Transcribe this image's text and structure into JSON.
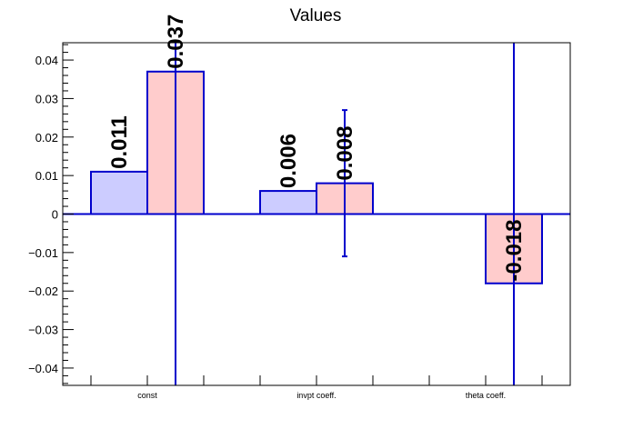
{
  "chart_data": {
    "type": "bar",
    "title": "Values",
    "xlabel": "",
    "ylabel": "",
    "categories": [
      "const",
      "invpt coeff.",
      "theta coeff."
    ],
    "ylim": [
      -0.0445,
      0.0445
    ],
    "yticks": [
      -0.04,
      -0.03,
      -0.02,
      -0.01,
      0,
      0.01,
      0.02,
      0.03,
      0.04
    ],
    "ytick_labels": [
      "−0.04",
      "−0.03",
      "−0.02",
      "−0.01",
      "0",
      "0.01",
      "0.02",
      "0.03",
      "0.04"
    ],
    "grid": false,
    "series": [
      {
        "color": "#ccccff",
        "edge_color": "#0000cc",
        "values": [
          0.011,
          0.006,
          null
        ],
        "labels": [
          "0.011",
          "0.006",
          ""
        ],
        "errors": [
          null,
          null,
          null
        ]
      },
      {
        "color": "#ffcccc",
        "edge_color": "#0000cc",
        "values": [
          0.037,
          0.008,
          -0.018
        ],
        "labels": [
          "0.037",
          "0.008",
          "-0.018"
        ],
        "errors": [
          0.09,
          0.019,
          0.09
        ]
      }
    ]
  }
}
